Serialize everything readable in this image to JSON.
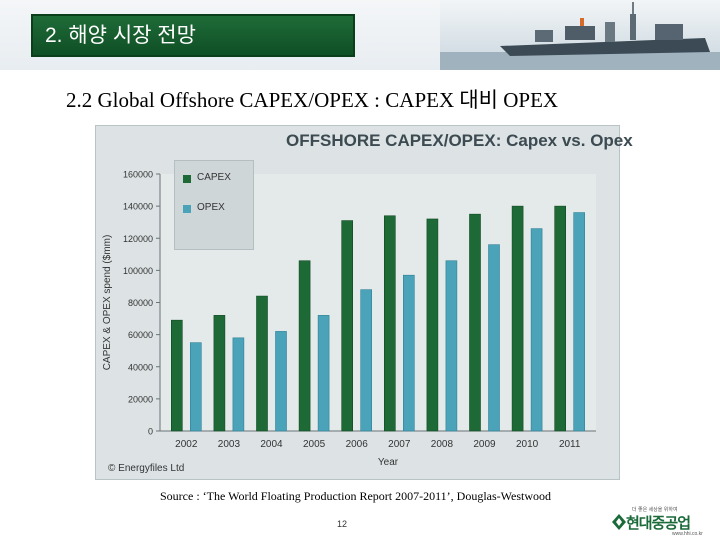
{
  "header": {
    "section_title": "2. 해양 시장 전망"
  },
  "slide": {
    "title": "2.2  Global Offshore CAPEX/OPEX : CAPEX 대비 OPEX",
    "source": "Source : ‘The World Floating Production Report 2007-2011’, Douglas-Westwood",
    "page_number": "12"
  },
  "logo": {
    "tagline": "더 좋은 세상을 위하여",
    "name": "현대중공업",
    "url": "www.hhi.co.kr"
  },
  "colors": {
    "header_green": "#1f6b38",
    "capex": "#1d6a37",
    "opex": "#4aa3b8",
    "chart_bg": "#dde3e5"
  },
  "chart_data": {
    "type": "bar",
    "title": "OFFSHORE CAPEX/OPEX: Capex vs. Opex",
    "xlabel": "Year",
    "ylabel": "CAPEX & OPEX spend ($mm)",
    "categories": [
      "2002",
      "2003",
      "2004",
      "2005",
      "2006",
      "2007",
      "2008",
      "2009",
      "2010",
      "2011"
    ],
    "series": [
      {
        "name": "CAPEX",
        "color": "#1d6a37",
        "values": [
          69000,
          72000,
          84000,
          106000,
          131000,
          134000,
          132000,
          135000,
          140000,
          140000
        ]
      },
      {
        "name": "OPEX",
        "color": "#4aa3b8",
        "values": [
          55000,
          58000,
          62000,
          72000,
          88000,
          97000,
          106000,
          116000,
          126000,
          136000
        ]
      }
    ],
    "ylim": [
      0,
      160000
    ],
    "yticks": [
      0,
      20000,
      40000,
      60000,
      80000,
      100000,
      120000,
      140000,
      160000
    ],
    "grid": false,
    "legend_position": "top-left",
    "credit": "© Energyfiles Ltd"
  }
}
